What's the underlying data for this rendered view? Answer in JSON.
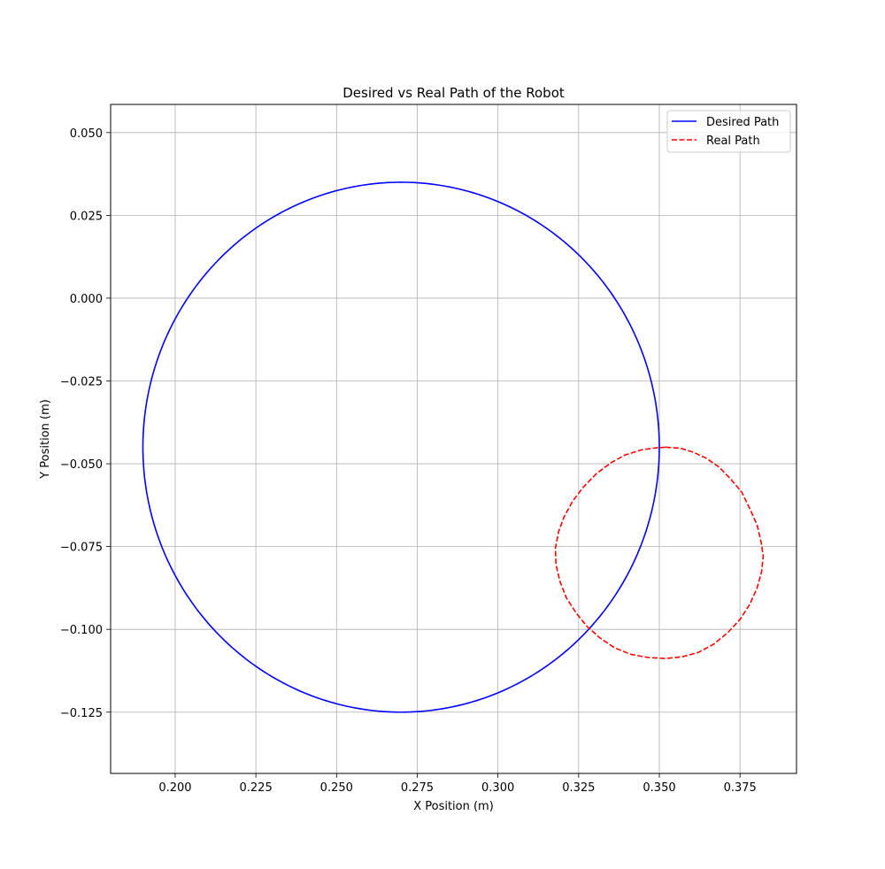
{
  "chart_data": {
    "type": "line",
    "title": "Desired vs Real Path of the Robot",
    "xlabel": "X Position (m)",
    "ylabel": "Y Position (m)",
    "xlim": [
      0.18,
      0.3925
    ],
    "ylim": [
      -0.1435,
      0.0585
    ],
    "xticks": [
      0.2,
      0.225,
      0.25,
      0.275,
      0.3,
      0.325,
      0.35,
      0.375
    ],
    "xtick_labels": [
      "0.200",
      "0.225",
      "0.250",
      "0.275",
      "0.300",
      "0.325",
      "0.350",
      "0.375"
    ],
    "yticks": [
      0.05,
      0.025,
      0.0,
      -0.025,
      -0.05,
      -0.075,
      -0.1,
      -0.125
    ],
    "ytick_labels": [
      "0.050",
      "0.025",
      "0.000",
      "−0.025",
      "−0.050",
      "−0.075",
      "−0.100",
      "−0.125"
    ],
    "grid": true,
    "legend_position": "top-right",
    "series": [
      {
        "name": "Desired Path",
        "color": "#0000ff",
        "style": "solid",
        "shape": "circle",
        "center": [
          0.27,
          -0.045
        ],
        "radius": 0.08
      },
      {
        "name": "Real Path",
        "color": "#ff0000",
        "style": "dashed",
        "points": [
          [
            0.352,
            -0.045
          ],
          [
            0.3565,
            -0.0453
          ],
          [
            0.3605,
            -0.0465
          ],
          [
            0.3645,
            -0.0483
          ],
          [
            0.3685,
            -0.051
          ],
          [
            0.372,
            -0.0545
          ],
          [
            0.3755,
            -0.0585
          ],
          [
            0.378,
            -0.0635
          ],
          [
            0.3803,
            -0.0685
          ],
          [
            0.3815,
            -0.0735
          ],
          [
            0.3822,
            -0.0778
          ],
          [
            0.3817,
            -0.0825
          ],
          [
            0.3803,
            -0.0875
          ],
          [
            0.378,
            -0.0925
          ],
          [
            0.375,
            -0.097
          ],
          [
            0.3712,
            -0.101
          ],
          [
            0.3668,
            -0.1045
          ],
          [
            0.362,
            -0.107
          ],
          [
            0.357,
            -0.1083
          ],
          [
            0.352,
            -0.1088
          ],
          [
            0.3465,
            -0.1085
          ],
          [
            0.341,
            -0.1075
          ],
          [
            0.336,
            -0.1055
          ],
          [
            0.3315,
            -0.1025
          ],
          [
            0.3275,
            -0.099
          ],
          [
            0.3242,
            -0.095
          ],
          [
            0.3212,
            -0.0905
          ],
          [
            0.3192,
            -0.0855
          ],
          [
            0.318,
            -0.0805
          ],
          [
            0.3178,
            -0.0755
          ],
          [
            0.3188,
            -0.0705
          ],
          [
            0.3205,
            -0.066
          ],
          [
            0.3232,
            -0.0612
          ],
          [
            0.3265,
            -0.057
          ],
          [
            0.3305,
            -0.053
          ],
          [
            0.335,
            -0.0497
          ],
          [
            0.3395,
            -0.0473
          ],
          [
            0.3445,
            -0.0458
          ],
          [
            0.349,
            -0.0452
          ],
          [
            0.352,
            -0.045
          ]
        ]
      }
    ]
  }
}
